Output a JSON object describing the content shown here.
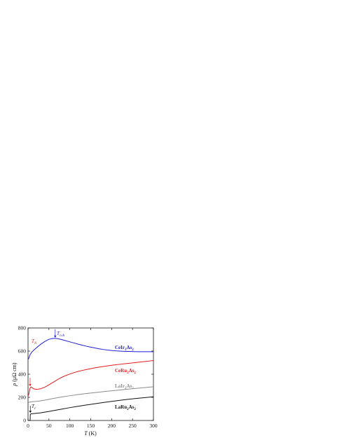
{
  "chart_data": {
    "type": "line",
    "xlabel": "T (K)",
    "xlabel_italic": "T",
    "xlabel_unit": " (K)",
    "ylabel": "ρ (μΩ cm)",
    "ylabel_italic": "ρ",
    "ylabel_unit": " (μΩ cm)",
    "xlim": [
      0,
      300
    ],
    "ylim": [
      0,
      800
    ],
    "xticks": [
      0,
      50,
      100,
      150,
      200,
      250,
      300
    ],
    "yticks": [
      0,
      200,
      400,
      600,
      800
    ],
    "xtick_labels": [
      "0",
      "50",
      "100",
      "150",
      "200",
      "250",
      "300"
    ],
    "ytick_labels": [
      "0",
      "200",
      "400",
      "600",
      "800"
    ],
    "grid": false,
    "series": [
      {
        "name": "CeIr2As2",
        "label_main": "CeIr",
        "label_sub": "2",
        "label_tail": "As",
        "label_sub2": "2",
        "color": "#1f1fd8",
        "x": [
          1,
          5,
          10,
          15,
          20,
          30,
          40,
          50,
          60,
          65,
          70,
          80,
          90,
          100,
          110,
          120,
          130,
          140,
          150,
          160,
          170,
          180,
          190,
          200,
          210,
          220,
          230,
          240,
          250,
          260,
          270,
          280,
          290,
          300
        ],
        "y": [
          530,
          570,
          595,
          612,
          628,
          658,
          683,
          702,
          710,
          710,
          708,
          700,
          690,
          680,
          670,
          660,
          651,
          642,
          634,
          627,
          620,
          614,
          609,
          605,
          602,
          600,
          598,
          597,
          596,
          595,
          595,
          595,
          595,
          595
        ]
      },
      {
        "name": "CeRu2As2",
        "label_main": "CeRu",
        "label_sub": "2",
        "label_tail": "As",
        "label_sub2": "2",
        "color": "#e41a1a",
        "x": [
          1,
          3,
          5,
          7,
          10,
          15,
          20,
          25,
          30,
          40,
          50,
          60,
          70,
          80,
          90,
          100,
          110,
          120,
          130,
          140,
          150,
          160,
          170,
          180,
          190,
          200,
          210,
          220,
          230,
          240,
          250,
          260,
          270,
          280,
          290,
          300
        ],
        "y": [
          215,
          250,
          282,
          290,
          282,
          272,
          270,
          271,
          274,
          288,
          308,
          330,
          352,
          372,
          388,
          402,
          414,
          424,
          433,
          441,
          448,
          455,
          461,
          467,
          472,
          477,
          482,
          486,
          490,
          494,
          498,
          502,
          506,
          510,
          514,
          518
        ]
      },
      {
        "name": "LaIr2As2",
        "label_main": "LaIr",
        "label_sub": "2",
        "label_tail": "As",
        "label_sub2": "2",
        "color": "#8c8c8c",
        "x": [
          1,
          5,
          10,
          20,
          30,
          40,
          50,
          60,
          80,
          100,
          120,
          140,
          160,
          180,
          200,
          220,
          240,
          260,
          280,
          300
        ],
        "y": [
          155,
          160,
          162,
          165,
          170,
          176,
          183,
          190,
          203,
          214,
          224,
          233,
          241,
          249,
          257,
          264,
          271,
          278,
          285,
          292
        ]
      },
      {
        "name": "LaRu2As2",
        "label_main": "LaRu",
        "label_sub": "2",
        "label_tail": "As",
        "label_sub2": "2",
        "color": "#111111",
        "x": [
          1,
          3,
          5,
          5.5,
          7,
          10,
          20,
          30,
          40,
          50,
          60,
          80,
          100,
          120,
          140,
          160,
          180,
          200,
          220,
          240,
          260,
          280,
          300
        ],
        "y": [
          0,
          0,
          0,
          55,
          57,
          58,
          62,
          66,
          72,
          78,
          85,
          98,
          111,
          123,
          134,
          145,
          155,
          165,
          174,
          183,
          191,
          198,
          205
        ]
      }
    ],
    "annotations": [
      {
        "name": "T_coh",
        "main": "T",
        "sub": "coh",
        "color": "#1f1fd8",
        "x": 65,
        "y": 710
      },
      {
        "name": "T_N",
        "main": "T",
        "sub": "N",
        "color": "#e41a1a",
        "x": 5,
        "y": 290
      },
      {
        "name": "T_c",
        "main": "T",
        "sub": "c",
        "color": "#111111",
        "x": 5.5,
        "y": 60
      }
    ]
  }
}
